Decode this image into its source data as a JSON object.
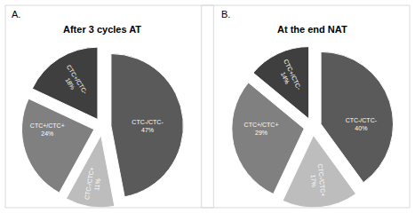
{
  "chart_data": [
    {
      "type": "pie",
      "annotations": [
        "A."
      ],
      "title": "After 3 cycles AT",
      "categories": [
        "CTC-/CTC-",
        "CTC-/CTC+",
        "CTC+/CTC+",
        "CTC+/CTC-"
      ],
      "values": [
        47,
        11,
        24,
        18
      ],
      "value_labels": [
        "47%",
        "11%",
        "24%",
        "18%"
      ],
      "colors": [
        "#5a5a5a",
        "#bdbdbd",
        "#808080",
        "#3f3f3f"
      ],
      "data_labels": true
    },
    {
      "type": "pie",
      "annotations": [
        "B."
      ],
      "title": "At the end NAT",
      "categories": [
        "CTC-/CTC-",
        "CTC-/CTC+",
        "CTC+/CTC+",
        "CTC+/CTC-"
      ],
      "values": [
        40,
        17,
        29,
        14
      ],
      "value_labels": [
        "40%",
        "17%",
        "29%",
        "14%"
      ],
      "colors": [
        "#5a5a5a",
        "#bdbdbd",
        "#808080",
        "#3f3f3f"
      ],
      "data_labels": true
    }
  ]
}
